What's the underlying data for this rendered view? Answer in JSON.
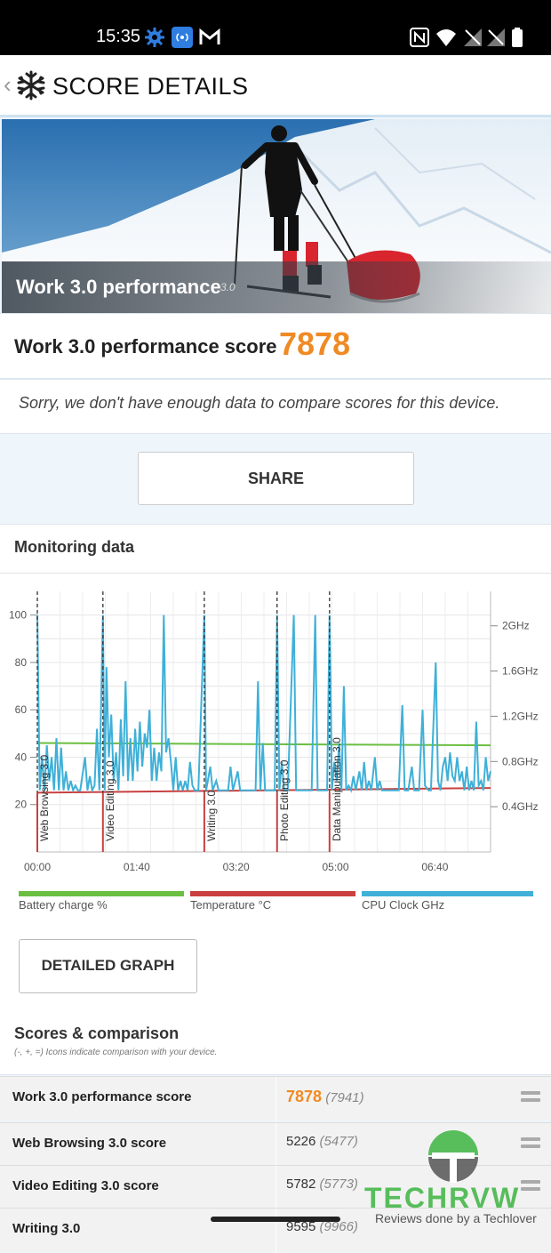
{
  "status_bar": {
    "time": "15:35"
  },
  "app_bar": {
    "back_icon": "chevron-left-icon",
    "logo_icon": "snowflake-icon",
    "title": "SCORE DETAILS"
  },
  "hero": {
    "title": "Work 3.0 performance",
    "version": "3.0"
  },
  "score": {
    "label": "Work 3.0 performance score",
    "value": "7878"
  },
  "message": "Sorry, we don't have enough data to compare scores for this device.",
  "share_button": "SHARE",
  "monitoring": {
    "title": "Monitoring data",
    "legend": [
      {
        "label": "Battery charge %",
        "color": "#6abf40"
      },
      {
        "label": "Temperature °C",
        "color": "#c94040"
      },
      {
        "label": "CPU Clock GHz",
        "color": "#3fb0d8"
      }
    ],
    "detailed_graph_button": "DETAILED GRAPH"
  },
  "chart_data": {
    "type": "line",
    "x_tick_labels": [
      "00:00",
      "01:40",
      "03:20",
      "05:00",
      "06:40"
    ],
    "y_left_ticks": [
      "20",
      "40",
      "60",
      "80",
      "100"
    ],
    "y_right_ticks": [
      "0.4GHz",
      "0.8GHz",
      "1.2GHz",
      "1.6GHz",
      "2GHz"
    ],
    "ylim": [
      0,
      110
    ],
    "markers": [
      {
        "label": "Web Browsing 3.0",
        "t": 0
      },
      {
        "label": "Video Editing 3.0",
        "t": 110
      },
      {
        "label": "Writing 3.0",
        "t": 280
      },
      {
        "label": "Photo Editing 3.0",
        "t": 402
      },
      {
        "label": "Data Manipulation 3.0",
        "t": 490
      }
    ],
    "series": [
      {
        "name": "Battery charge %",
        "color": "#6abf40",
        "points": [
          [
            0,
            46
          ],
          [
            760,
            45
          ]
        ]
      },
      {
        "name": "Temperature °C",
        "color": "#c94040",
        "points": [
          [
            0,
            25
          ],
          [
            760,
            27
          ]
        ]
      },
      {
        "name": "CPU Clock GHz",
        "color": "#3fb0d8",
        "points": [
          [
            0,
            100
          ],
          [
            4,
            26
          ],
          [
            8,
            40
          ],
          [
            12,
            26
          ],
          [
            16,
            45
          ],
          [
            20,
            30
          ],
          [
            24,
            40
          ],
          [
            28,
            26
          ],
          [
            32,
            48
          ],
          [
            36,
            26
          ],
          [
            40,
            44
          ],
          [
            44,
            26
          ],
          [
            48,
            34
          ],
          [
            52,
            26
          ],
          [
            56,
            30
          ],
          [
            60,
            26
          ],
          [
            64,
            28
          ],
          [
            68,
            26
          ],
          [
            72,
            26
          ],
          [
            80,
            40
          ],
          [
            84,
            26
          ],
          [
            88,
            32
          ],
          [
            92,
            26
          ],
          [
            96,
            28
          ],
          [
            100,
            52
          ],
          [
            104,
            26
          ],
          [
            110,
            100
          ],
          [
            113,
            26
          ],
          [
            116,
            78
          ],
          [
            120,
            40
          ],
          [
            124,
            58
          ],
          [
            128,
            30
          ],
          [
            132,
            42
          ],
          [
            136,
            26
          ],
          [
            140,
            56
          ],
          [
            144,
            32
          ],
          [
            148,
            72
          ],
          [
            152,
            30
          ],
          [
            156,
            48
          ],
          [
            160,
            30
          ],
          [
            164,
            52
          ],
          [
            168,
            34
          ],
          [
            172,
            55
          ],
          [
            176,
            36
          ],
          [
            180,
            50
          ],
          [
            184,
            44
          ],
          [
            188,
            60
          ],
          [
            192,
            30
          ],
          [
            196,
            44
          ],
          [
            200,
            30
          ],
          [
            204,
            42
          ],
          [
            208,
            34
          ],
          [
            212,
            100
          ],
          [
            216,
            42
          ],
          [
            220,
            48
          ],
          [
            224,
            38
          ],
          [
            228,
            26
          ],
          [
            232,
            40
          ],
          [
            236,
            26
          ],
          [
            240,
            30
          ],
          [
            244,
            26
          ],
          [
            248,
            30
          ],
          [
            252,
            26
          ],
          [
            256,
            38
          ],
          [
            260,
            28
          ],
          [
            264,
            26
          ],
          [
            270,
            26
          ],
          [
            280,
            100
          ],
          [
            283,
            26
          ],
          [
            286,
            30
          ],
          [
            290,
            36
          ],
          [
            294,
            26
          ],
          [
            300,
            30
          ],
          [
            304,
            26
          ],
          [
            310,
            26
          ],
          [
            320,
            26
          ],
          [
            324,
            36
          ],
          [
            328,
            26
          ],
          [
            336,
            34
          ],
          [
            340,
            26
          ],
          [
            350,
            26
          ],
          [
            360,
            26
          ],
          [
            366,
            26
          ],
          [
            370,
            72
          ],
          [
            374,
            26
          ],
          [
            378,
            46
          ],
          [
            382,
            26
          ],
          [
            386,
            26
          ],
          [
            392,
            26
          ],
          [
            398,
            26
          ],
          [
            402,
            100
          ],
          [
            406,
            26
          ],
          [
            410,
            38
          ],
          [
            414,
            26
          ],
          [
            420,
            26
          ],
          [
            430,
            100
          ],
          [
            434,
            26
          ],
          [
            440,
            26
          ],
          [
            450,
            26
          ],
          [
            460,
            26
          ],
          [
            466,
            100
          ],
          [
            470,
            26
          ],
          [
            476,
            26
          ],
          [
            480,
            26
          ],
          [
            486,
            26
          ],
          [
            490,
            100
          ],
          [
            494,
            26
          ],
          [
            498,
            38
          ],
          [
            502,
            30
          ],
          [
            506,
            46
          ],
          [
            510,
            26
          ],
          [
            514,
            70
          ],
          [
            518,
            26
          ],
          [
            522,
            28
          ],
          [
            526,
            26
          ],
          [
            530,
            32
          ],
          [
            534,
            26
          ],
          [
            540,
            34
          ],
          [
            544,
            26
          ],
          [
            548,
            38
          ],
          [
            552,
            26
          ],
          [
            556,
            30
          ],
          [
            560,
            26
          ],
          [
            566,
            40
          ],
          [
            570,
            26
          ],
          [
            574,
            30
          ],
          [
            578,
            26
          ],
          [
            586,
            26
          ],
          [
            596,
            26
          ],
          [
            606,
            26
          ],
          [
            612,
            62
          ],
          [
            616,
            26
          ],
          [
            622,
            26
          ],
          [
            628,
            36
          ],
          [
            632,
            26
          ],
          [
            640,
            26
          ],
          [
            646,
            60
          ],
          [
            650,
            28
          ],
          [
            656,
            26
          ],
          [
            660,
            26
          ],
          [
            668,
            80
          ],
          [
            672,
            30
          ],
          [
            676,
            26
          ],
          [
            680,
            36
          ],
          [
            684,
            40
          ],
          [
            688,
            30
          ],
          [
            692,
            42
          ],
          [
            696,
            32
          ],
          [
            700,
            30
          ],
          [
            704,
            40
          ],
          [
            708,
            30
          ],
          [
            712,
            34
          ],
          [
            716,
            26
          ],
          [
            720,
            36
          ],
          [
            724,
            26
          ],
          [
            728,
            30
          ],
          [
            732,
            26
          ],
          [
            736,
            55
          ],
          [
            740,
            28
          ],
          [
            744,
            30
          ],
          [
            748,
            26
          ],
          [
            752,
            40
          ],
          [
            756,
            30
          ],
          [
            760,
            34
          ]
        ]
      }
    ],
    "x_range": [
      0,
      760
    ]
  },
  "scores_section": {
    "title": "Scores & comparison",
    "subtitle": "(-, +, =) Icons indicate comparison with your device.",
    "rows": [
      {
        "label": "Work 3.0 performance score",
        "value": "7878",
        "compare": "(7941)"
      },
      {
        "label": "Web Browsing 3.0 score",
        "value": "5226",
        "compare": "(5477)"
      },
      {
        "label": "Video Editing 3.0 score",
        "value": "5782",
        "compare": "(5773)"
      },
      {
        "label": "Writing 3.0",
        "value": "9595",
        "compare": "(9966)"
      }
    ]
  },
  "watermark": {
    "brand": "TECHRVW",
    "tagline": "Reviews done by a Techlover"
  }
}
